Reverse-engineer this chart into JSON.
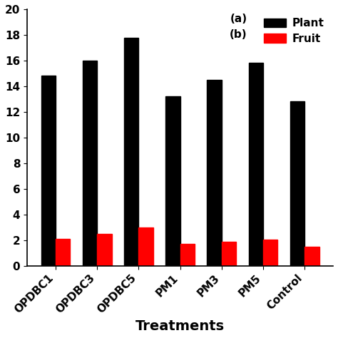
{
  "categories": [
    "OPDBC1",
    "OPDBC3",
    "OPDBC5",
    "PM1",
    "PM3",
    "PM5",
    "Control"
  ],
  "plant_values": [
    14.8,
    16.0,
    17.8,
    13.2,
    14.5,
    15.8,
    12.8
  ],
  "fruit_values": [
    2.1,
    2.5,
    3.0,
    1.7,
    1.85,
    2.05,
    1.5
  ],
  "plant_color": "#000000",
  "fruit_color": "#ff0000",
  "bar_width": 0.35,
  "ylim": [
    0,
    20
  ],
  "yticks": [
    0,
    2,
    4,
    6,
    8,
    10,
    12,
    14,
    16,
    18,
    20
  ],
  "xlabel": "Treatments",
  "xlabel_fontsize": 14,
  "xlabel_fontweight": "bold",
  "tick_fontsize": 11,
  "legend_fontsize": 11,
  "background_color": "#ffffff"
}
